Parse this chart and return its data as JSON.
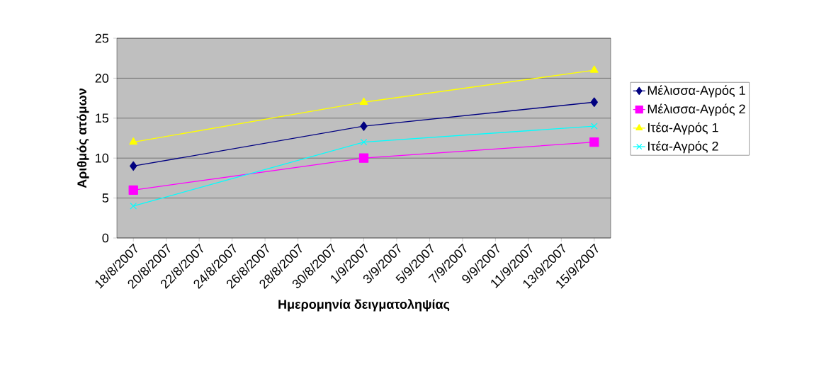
{
  "chart_data": {
    "type": "line",
    "xlabel": "Ημερομηνία δειγματοληψίας",
    "ylabel": "Αριθμός ατόμων",
    "x": [
      "2007-08-18",
      "2007-09-01",
      "2007-09-15"
    ],
    "series": [
      {
        "name": "Μέλισσα-Αγρός 1",
        "color": "#000080",
        "marker": "diamond",
        "values": [
          9,
          14,
          17
        ]
      },
      {
        "name": "Μέλισσα-Αγρός 2",
        "color": "#ff00ff",
        "marker": "square",
        "values": [
          6,
          10,
          12
        ]
      },
      {
        "name": "Ιτέα-Αγρός 1",
        "color": "#ffff00",
        "marker": "triangle",
        "values": [
          12,
          17,
          21
        ]
      },
      {
        "name": "Ιτέα-Αγρός 2",
        "color": "#00ffff",
        "marker": "cross",
        "values": [
          4,
          12,
          14
        ]
      }
    ],
    "xlim": [
      "2007-08-17",
      "2007-09-16"
    ],
    "xticks": [
      {
        "value": "2007-08-18",
        "label": "18/8/2007"
      },
      {
        "value": "2007-08-20",
        "label": "20/8/2007"
      },
      {
        "value": "2007-08-22",
        "label": "22/8/2007"
      },
      {
        "value": "2007-08-24",
        "label": "24/8/2007"
      },
      {
        "value": "2007-08-26",
        "label": "26/8/2007"
      },
      {
        "value": "2007-08-28",
        "label": "28/8/2007"
      },
      {
        "value": "2007-08-30",
        "label": "30/8/2007"
      },
      {
        "value": "2007-09-01",
        "label": "1/9/2007"
      },
      {
        "value": "2007-09-03",
        "label": "3/9/2007"
      },
      {
        "value": "2007-09-05",
        "label": "5/9/2007"
      },
      {
        "value": "2007-09-07",
        "label": "7/9/2007"
      },
      {
        "value": "2007-09-09",
        "label": "9/9/2007"
      },
      {
        "value": "2007-09-11",
        "label": "11/9/2007"
      },
      {
        "value": "2007-09-13",
        "label": "13/9/2007"
      },
      {
        "value": "2007-09-15",
        "label": "15/9/2007"
      }
    ],
    "ylim": [
      0,
      25
    ],
    "yticks": [
      0,
      5,
      10,
      15,
      20,
      25
    ],
    "grid": "y",
    "legend": "right",
    "line_style": "solid"
  }
}
